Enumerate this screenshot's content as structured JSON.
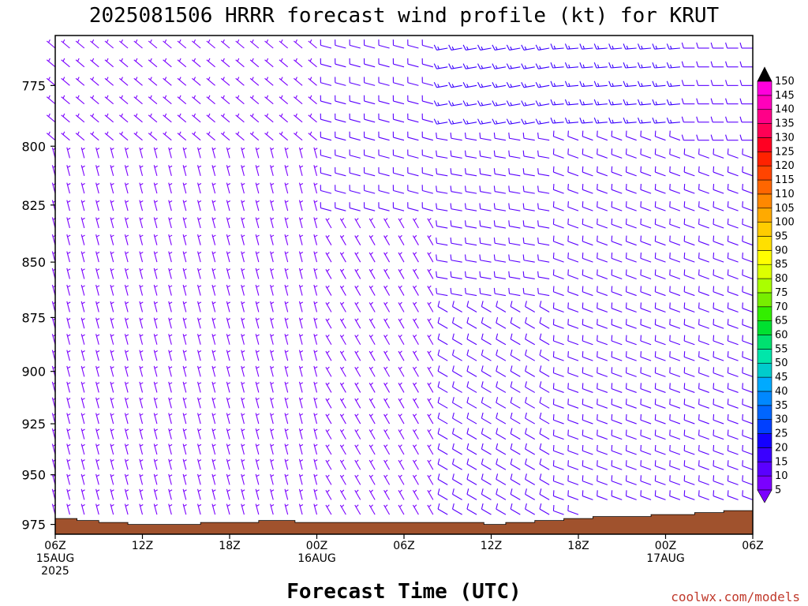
{
  "chart_data": {
    "type": "wind_barb_profile",
    "title": "2025081506 HRRR forecast wind profile (kt) for KRUT",
    "xlabel": "Forecast Time (UTC)",
    "credit": "coolwx.com/models",
    "x_ticks": [
      {
        "hour": 0,
        "lines": [
          "06Z",
          "15AUG",
          "2025"
        ]
      },
      {
        "hour": 6,
        "lines": [
          "12Z"
        ]
      },
      {
        "hour": 12,
        "lines": [
          "18Z"
        ]
      },
      {
        "hour": 18,
        "lines": [
          "00Z",
          "16AUG"
        ]
      },
      {
        "hour": 24,
        "lines": [
          "06Z"
        ]
      },
      {
        "hour": 30,
        "lines": [
          "12Z"
        ]
      },
      {
        "hour": 36,
        "lines": [
          "18Z"
        ]
      },
      {
        "hour": 42,
        "lines": [
          "00Z",
          "17AUG"
        ]
      },
      {
        "hour": 48,
        "lines": [
          "06Z"
        ]
      }
    ],
    "x_range_hours": [
      0,
      48
    ],
    "y_ticks": [
      775,
      800,
      825,
      850,
      875,
      900,
      925,
      950,
      975
    ],
    "y_range_mb": [
      755,
      980
    ],
    "y_scale": "log-pressure",
    "colorbar": {
      "levels": [
        5,
        10,
        15,
        20,
        25,
        30,
        35,
        40,
        45,
        50,
        55,
        60,
        65,
        70,
        75,
        80,
        85,
        90,
        95,
        100,
        105,
        110,
        115,
        120,
        125,
        130,
        135,
        140,
        145,
        150
      ],
      "colors": [
        "#7b00ff",
        "#5a00ff",
        "#3a00ff",
        "#1400ff",
        "#0040ff",
        "#0066ff",
        "#0088ff",
        "#00aaff",
        "#00cccc",
        "#00e6aa",
        "#00e070",
        "#00e030",
        "#33ee00",
        "#77ee00",
        "#aaff00",
        "#ddff00",
        "#ffff00",
        "#ffe000",
        "#ffcc00",
        "#ffaa00",
        "#ff8800",
        "#ff6600",
        "#ff4400",
        "#ff2200",
        "#ff0022",
        "#ff0055",
        "#ff0088",
        "#ff00bb",
        "#ff00dd",
        "#dd00ff"
      ]
    },
    "terrain": {
      "color": "#a0522d",
      "surface_mb": [
        {
          "hour": 0,
          "mb": 972
        },
        {
          "hour": 1.5,
          "mb": 973
        },
        {
          "hour": 3,
          "mb": 974
        },
        {
          "hour": 5,
          "mb": 975
        },
        {
          "hour": 10,
          "mb": 974
        },
        {
          "hour": 14,
          "mb": 973
        },
        {
          "hour": 16.5,
          "mb": 974
        },
        {
          "hour": 25,
          "mb": 974
        },
        {
          "hour": 29.5,
          "mb": 975
        },
        {
          "hour": 31,
          "mb": 974
        },
        {
          "hour": 33,
          "mb": 973
        },
        {
          "hour": 35,
          "mb": 972
        },
        {
          "hour": 37,
          "mb": 971
        },
        {
          "hour": 41,
          "mb": 970
        },
        {
          "hour": 44,
          "mb": 969
        },
        {
          "hour": 46,
          "mb": 968
        },
        {
          "hour": 48,
          "mb": 967
        }
      ]
    },
    "wind_regimes": [
      {
        "h0": 0,
        "h1": 18,
        "p0": 755,
        "p1": 800,
        "dir": 310,
        "spd": 8
      },
      {
        "h0": 0,
        "h1": 18,
        "p0": 800,
        "p1": 975,
        "dir": 345,
        "spd": 6
      },
      {
        "h0": 18,
        "h1": 26,
        "p0": 755,
        "p1": 830,
        "dir": 285,
        "spd": 10
      },
      {
        "h0": 18,
        "h1": 26,
        "p0": 830,
        "p1": 975,
        "dir": 330,
        "spd": 5
      },
      {
        "h0": 26,
        "h1": 34,
        "p0": 755,
        "p1": 790,
        "dir": 260,
        "spd": 15
      },
      {
        "h0": 26,
        "h1": 34,
        "p0": 790,
        "p1": 870,
        "dir": 280,
        "spd": 10
      },
      {
        "h0": 26,
        "h1": 34,
        "p0": 870,
        "p1": 975,
        "dir": 300,
        "spd": 10
      },
      {
        "h0": 34,
        "h1": 43,
        "p0": 755,
        "p1": 790,
        "dir": 265,
        "spd": 15
      },
      {
        "h0": 34,
        "h1": 43,
        "p0": 790,
        "p1": 975,
        "dir": 290,
        "spd": 10
      },
      {
        "h0": 43,
        "h1": 48,
        "p0": 755,
        "p1": 800,
        "dir": 270,
        "spd": 10
      },
      {
        "h0": 43,
        "h1": 48,
        "p0": 800,
        "p1": 975,
        "dir": 290,
        "spd": 10
      }
    ]
  }
}
